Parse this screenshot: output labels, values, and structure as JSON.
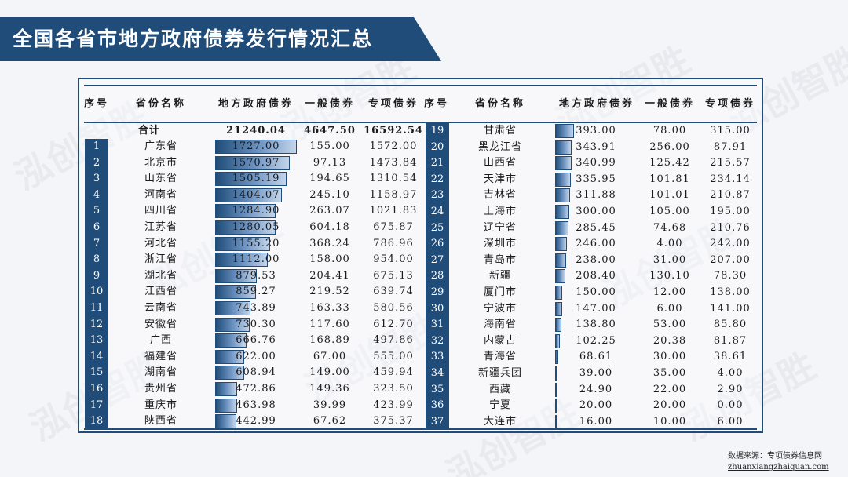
{
  "title": "全国各省市地方政府债券发行情况汇总",
  "watermark": "泓创智胜",
  "headers": {
    "index": "序号",
    "region": "省份名称",
    "total": "地方政府债券",
    "general": "一般债券",
    "special": "专项债券"
  },
  "summary": {
    "label": "合计",
    "total": "21240.04",
    "general": "4647.50",
    "special": "16592.54"
  },
  "left_rows": [
    {
      "idx": "1",
      "region": "广东省",
      "total": "1727.00",
      "general": "155.00",
      "special": "1572.00",
      "value": 1727.0
    },
    {
      "idx": "2",
      "region": "北京市",
      "total": "1570.97",
      "general": "97.13",
      "special": "1473.84",
      "value": 1570.97
    },
    {
      "idx": "3",
      "region": "山东省",
      "total": "1505.19",
      "general": "194.65",
      "special": "1310.54",
      "value": 1505.19
    },
    {
      "idx": "4",
      "region": "河南省",
      "total": "1404.07",
      "general": "245.10",
      "special": "1158.97",
      "value": 1404.07
    },
    {
      "idx": "5",
      "region": "四川省",
      "total": "1284.90",
      "general": "263.07",
      "special": "1021.83",
      "value": 1284.9
    },
    {
      "idx": "6",
      "region": "江苏省",
      "total": "1280.05",
      "general": "604.18",
      "special": "675.87",
      "value": 1280.05
    },
    {
      "idx": "7",
      "region": "河北省",
      "total": "1155.20",
      "general": "368.24",
      "special": "786.96",
      "value": 1155.2
    },
    {
      "idx": "8",
      "region": "浙江省",
      "total": "1112.00",
      "general": "158.00",
      "special": "954.00",
      "value": 1112.0
    },
    {
      "idx": "9",
      "region": "湖北省",
      "total": "879.53",
      "general": "204.41",
      "special": "675.13",
      "value": 879.53
    },
    {
      "idx": "10",
      "region": "江西省",
      "total": "859.27",
      "general": "219.52",
      "special": "639.74",
      "value": 859.27
    },
    {
      "idx": "11",
      "region": "云南省",
      "total": "743.89",
      "general": "163.33",
      "special": "580.56",
      "value": 743.89
    },
    {
      "idx": "12",
      "region": "安徽省",
      "total": "730.30",
      "general": "117.60",
      "special": "612.70",
      "value": 730.3
    },
    {
      "idx": "13",
      "region": "广西",
      "total": "666.76",
      "general": "168.89",
      "special": "497.86",
      "value": 666.76
    },
    {
      "idx": "14",
      "region": "福建省",
      "total": "622.00",
      "general": "67.00",
      "special": "555.00",
      "value": 622.0
    },
    {
      "idx": "15",
      "region": "湖南省",
      "total": "608.94",
      "general": "149.00",
      "special": "459.94",
      "value": 608.94
    },
    {
      "idx": "16",
      "region": "贵州省",
      "total": "472.86",
      "general": "149.36",
      "special": "323.50",
      "value": 472.86
    },
    {
      "idx": "17",
      "region": "重庆市",
      "total": "463.98",
      "general": "39.99",
      "special": "423.99",
      "value": 463.98
    },
    {
      "idx": "18",
      "region": "陕西省",
      "total": "442.99",
      "general": "67.62",
      "special": "375.37",
      "value": 442.99
    }
  ],
  "right_rows": [
    {
      "idx": "19",
      "region": "甘肃省",
      "total": "393.00",
      "general": "78.00",
      "special": "315.00",
      "value": 393.0
    },
    {
      "idx": "20",
      "region": "黑龙江省",
      "total": "343.91",
      "general": "256.00",
      "special": "87.91",
      "value": 343.91
    },
    {
      "idx": "21",
      "region": "山西省",
      "total": "340.99",
      "general": "125.42",
      "special": "215.57",
      "value": 340.99
    },
    {
      "idx": "22",
      "region": "天津市",
      "total": "335.95",
      "general": "101.81",
      "special": "234.14",
      "value": 335.95
    },
    {
      "idx": "23",
      "region": "吉林省",
      "total": "311.88",
      "general": "101.01",
      "special": "210.87",
      "value": 311.88
    },
    {
      "idx": "24",
      "region": "上海市",
      "total": "300.00",
      "general": "105.00",
      "special": "195.00",
      "value": 300.0
    },
    {
      "idx": "25",
      "region": "辽宁省",
      "total": "285.45",
      "general": "74.68",
      "special": "210.76",
      "value": 285.45
    },
    {
      "idx": "26",
      "region": "深圳市",
      "total": "246.00",
      "general": "4.00",
      "special": "242.00",
      "value": 246.0
    },
    {
      "idx": "27",
      "region": "青岛市",
      "total": "238.00",
      "general": "31.00",
      "special": "207.00",
      "value": 238.0
    },
    {
      "idx": "28",
      "region": "新疆",
      "total": "208.40",
      "general": "130.10",
      "special": "78.30",
      "value": 208.4
    },
    {
      "idx": "29",
      "region": "厦门市",
      "total": "150.00",
      "general": "12.00",
      "special": "138.00",
      "value": 150.0
    },
    {
      "idx": "30",
      "region": "宁波市",
      "total": "147.00",
      "general": "6.00",
      "special": "141.00",
      "value": 147.0
    },
    {
      "idx": "31",
      "region": "海南省",
      "total": "138.80",
      "general": "53.00",
      "special": "85.80",
      "value": 138.8
    },
    {
      "idx": "32",
      "region": "内蒙古",
      "total": "102.25",
      "general": "20.38",
      "special": "81.87",
      "value": 102.25
    },
    {
      "idx": "33",
      "region": "青海省",
      "total": "68.61",
      "general": "30.00",
      "special": "38.61",
      "value": 68.61
    },
    {
      "idx": "34",
      "region": "新疆兵团",
      "total": "39.00",
      "general": "35.00",
      "special": "4.00",
      "value": 39.0
    },
    {
      "idx": "35",
      "region": "西藏",
      "total": "24.90",
      "general": "22.00",
      "special": "2.90",
      "value": 24.9
    },
    {
      "idx": "36",
      "region": "宁夏",
      "total": "20.00",
      "general": "20.00",
      "special": "0.00",
      "value": 20.0
    },
    {
      "idx": "37",
      "region": "大连市",
      "total": "16.00",
      "general": "10.00",
      "special": "6.00",
      "value": 16.0
    }
  ],
  "bar_max": 1727.0,
  "source": {
    "label": "数据来源：专项债券信息网",
    "url": "zhuanxiangzhaiquan.com"
  },
  "colors": {
    "primary": "#1f4c78",
    "bar_light": "#c4d5ea"
  }
}
